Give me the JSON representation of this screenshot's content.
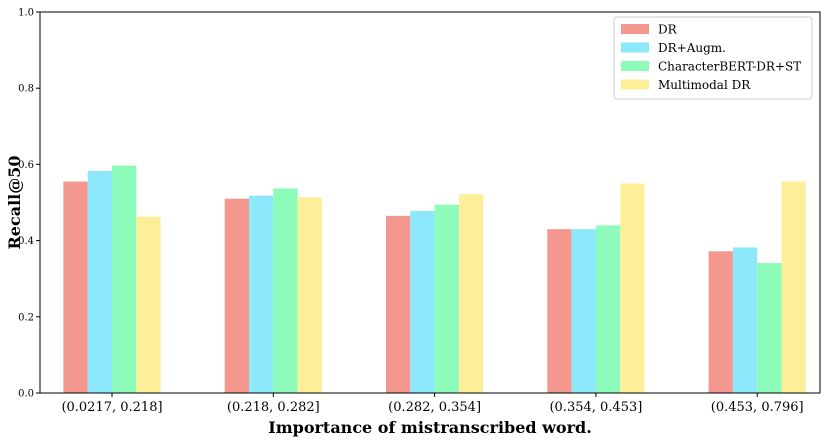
{
  "chart_data": {
    "type": "bar",
    "title": "",
    "xlabel": "Importance of mistranscribed word.",
    "ylabel": "Recall@50",
    "ylim": [
      0,
      1.0
    ],
    "yticks": [
      "0.0",
      "0.2",
      "0.4",
      "0.6",
      "0.8",
      "1.0"
    ],
    "categories": [
      "(0.0217, 0.218]",
      "(0.218, 0.282]",
      "(0.282, 0.354]",
      "(0.354, 0.453]",
      "(0.453, 0.796]"
    ],
    "series": [
      {
        "name": "DR",
        "color": "#f4978e",
        "values": [
          0.555,
          0.51,
          0.465,
          0.43,
          0.372
        ]
      },
      {
        "name": "DR+Augm.",
        "color": "#8ee8fb",
        "values": [
          0.583,
          0.518,
          0.478,
          0.43,
          0.382
        ]
      },
      {
        "name": "CharacterBERT-DR+ST",
        "color": "#8dfcba",
        "values": [
          0.597,
          0.537,
          0.494,
          0.44,
          0.341
        ]
      },
      {
        "name": "Multimodal DR",
        "color": "#fdef9a",
        "values": [
          0.463,
          0.514,
          0.522,
          0.55,
          0.555
        ]
      }
    ],
    "legend_position": "top-right"
  }
}
